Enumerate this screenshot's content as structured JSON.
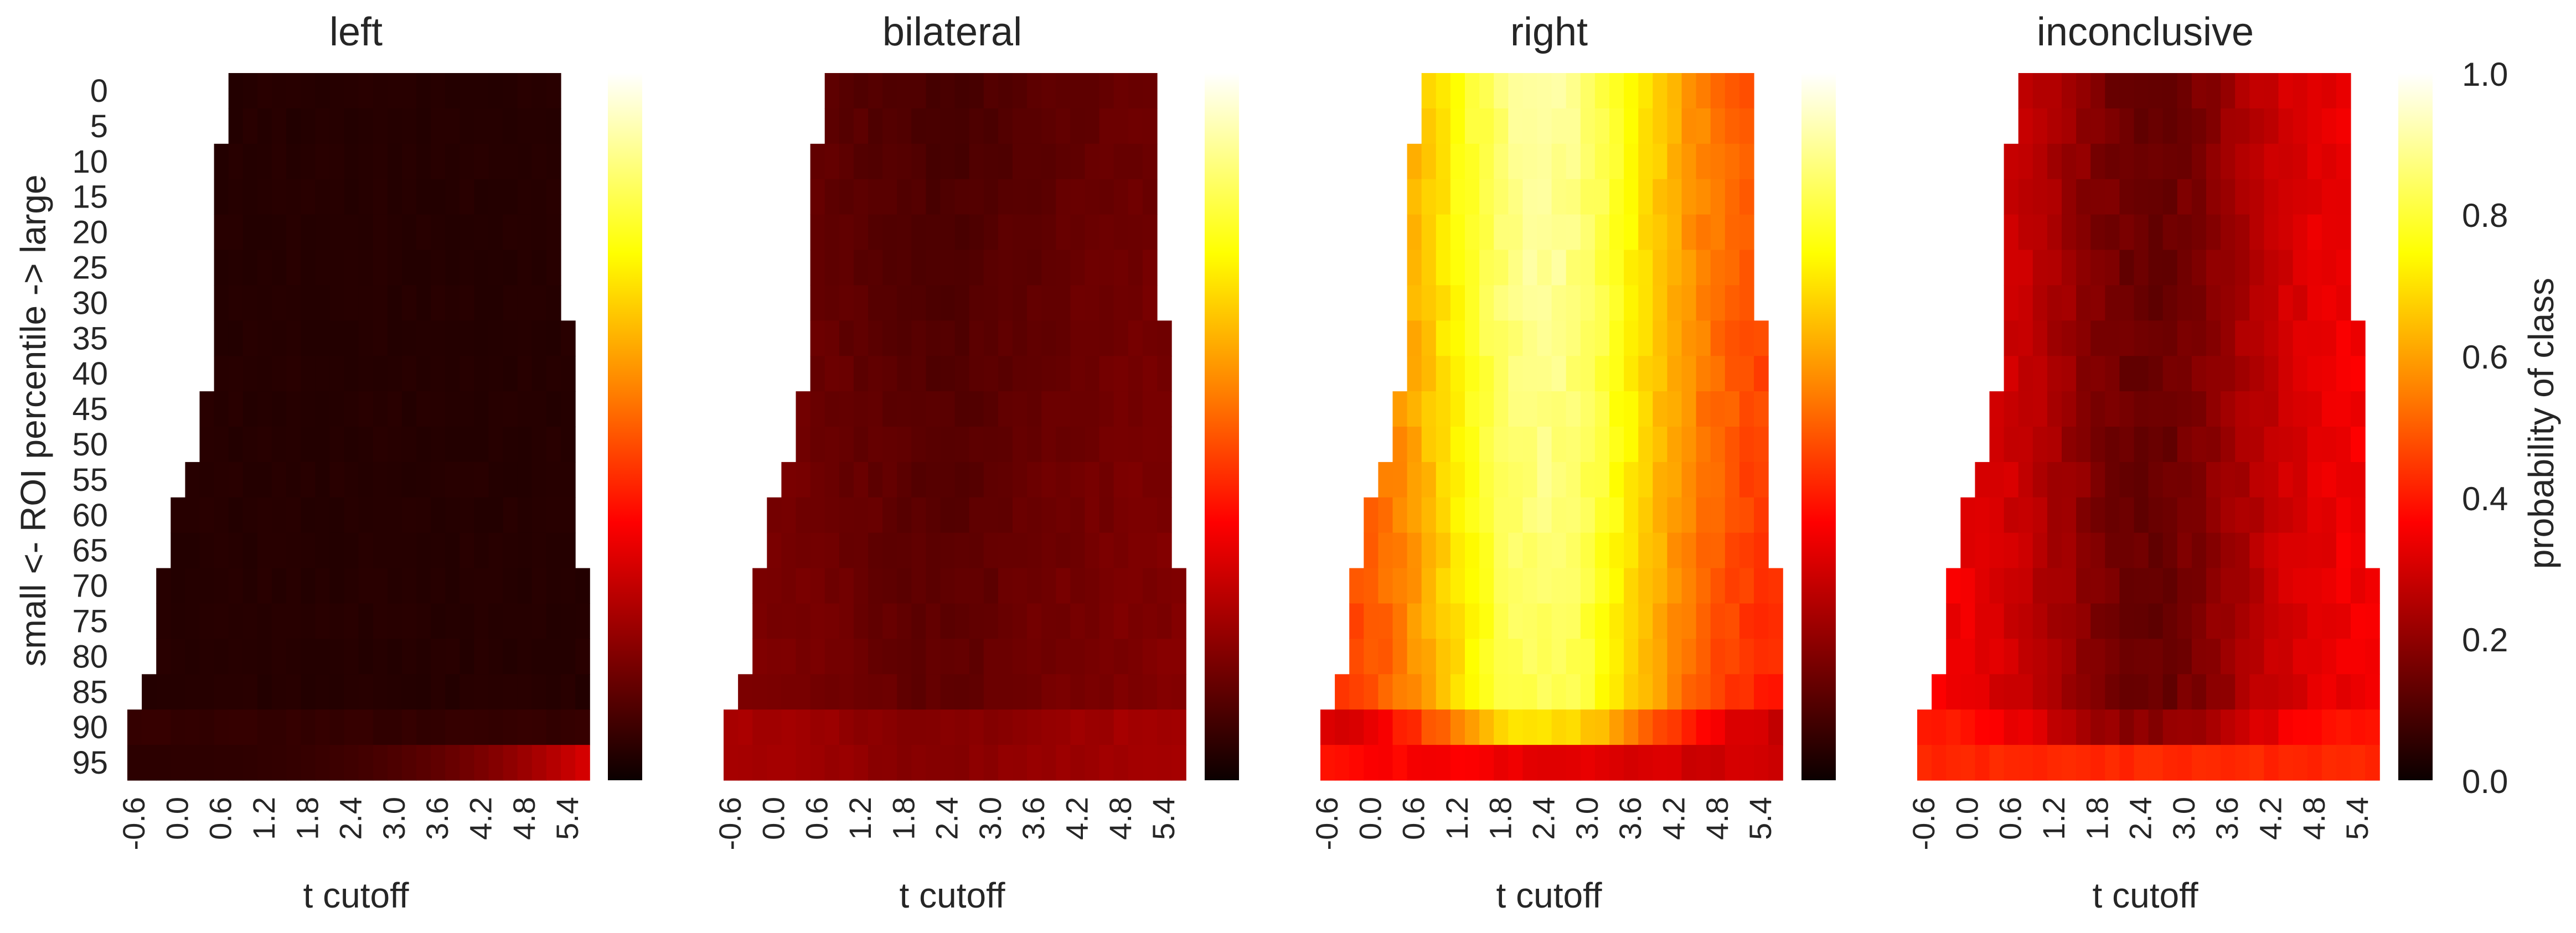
{
  "figure": {
    "ylabel": "small <- ROI percentile -> large",
    "colorbar_label": "probability of class",
    "colorbar_ticks": [
      "0.0",
      "0.2",
      "0.4",
      "0.6",
      "0.8",
      "1.0"
    ],
    "colormap": "hot",
    "colormap_stops": [
      "#0b0000",
      "#ff0000",
      "#ff8000",
      "#ffff00",
      "#ffffff"
    ]
  },
  "chart_data": [
    {
      "type": "heatmap",
      "title": "left",
      "xlabel": "t cutoff",
      "ylabel": "small <- ROI percentile -> large",
      "x_ticks": [
        "-0.6",
        "0.0",
        "0.6",
        "1.2",
        "1.8",
        "2.4",
        "3.0",
        "3.6",
        "4.2",
        "4.8",
        "5.4"
      ],
      "y_ticks": [
        "0",
        "5",
        "10",
        "15",
        "20",
        "25",
        "30",
        "35",
        "40",
        "45",
        "50",
        "55",
        "60",
        "65",
        "70",
        "75",
        "80",
        "85",
        "90",
        "95"
      ],
      "x_range": [
        -0.6,
        5.6
      ],
      "zlim": [
        0.0,
        1.0
      ],
      "z_range_approx": [
        0.02,
        0.3
      ],
      "description_values": "nearly all ~0.03-0.06; row 95 rises to ~0.3 at t=5.6"
    },
    {
      "type": "heatmap",
      "title": "bilateral",
      "xlabel": "t cutoff",
      "x_ticks": [
        "-0.6",
        "0.0",
        "0.6",
        "1.2",
        "1.8",
        "2.4",
        "3.0",
        "3.6",
        "4.2",
        "4.8",
        "5.4"
      ],
      "y_ticks": [
        "0",
        "5",
        "10",
        "15",
        "20",
        "25",
        "30",
        "35",
        "40",
        "45",
        "50",
        "55",
        "60",
        "65",
        "70",
        "75",
        "80",
        "85",
        "90",
        "95"
      ],
      "zlim": [
        0.0,
        1.0
      ],
      "z_range_approx": [
        0.08,
        0.25
      ],
      "description_values": "mostly ~0.1-0.15; edges and bottom rows ~0.2"
    },
    {
      "type": "heatmap",
      "title": "right",
      "xlabel": "t cutoff",
      "x_ticks": [
        "-0.6",
        "0.0",
        "0.6",
        "1.2",
        "1.8",
        "2.4",
        "3.0",
        "3.6",
        "4.2",
        "4.8",
        "5.4"
      ],
      "y_ticks": [
        "0",
        "5",
        "10",
        "15",
        "20",
        "25",
        "30",
        "35",
        "40",
        "45",
        "50",
        "55",
        "60",
        "65",
        "70",
        "75",
        "80",
        "85",
        "90",
        "95"
      ],
      "zlim": [
        0.0,
        1.0
      ],
      "z_range_approx": [
        0.25,
        0.92
      ],
      "description_values": "peak ~0.9 around t=2.4-3.0, mid rows; falls to ~0.4 at edges, row 95 ~0.35"
    },
    {
      "type": "heatmap",
      "title": "inconclusive",
      "xlabel": "t cutoff",
      "x_ticks": [
        "-0.6",
        "0.0",
        "0.6",
        "1.2",
        "1.8",
        "2.4",
        "3.0",
        "3.6",
        "4.2",
        "4.8",
        "5.4"
      ],
      "y_ticks": [
        "0",
        "5",
        "10",
        "15",
        "20",
        "25",
        "30",
        "35",
        "40",
        "45",
        "50",
        "55",
        "60",
        "65",
        "70",
        "75",
        "80",
        "85",
        "90",
        "95"
      ],
      "zlim": [
        0.0,
        1.0
      ],
      "z_range_approx": [
        0.1,
        0.45
      ],
      "description_values": "min ~0.12 near t=3.0; edges ~0.35; row 95 ~0.4"
    }
  ]
}
